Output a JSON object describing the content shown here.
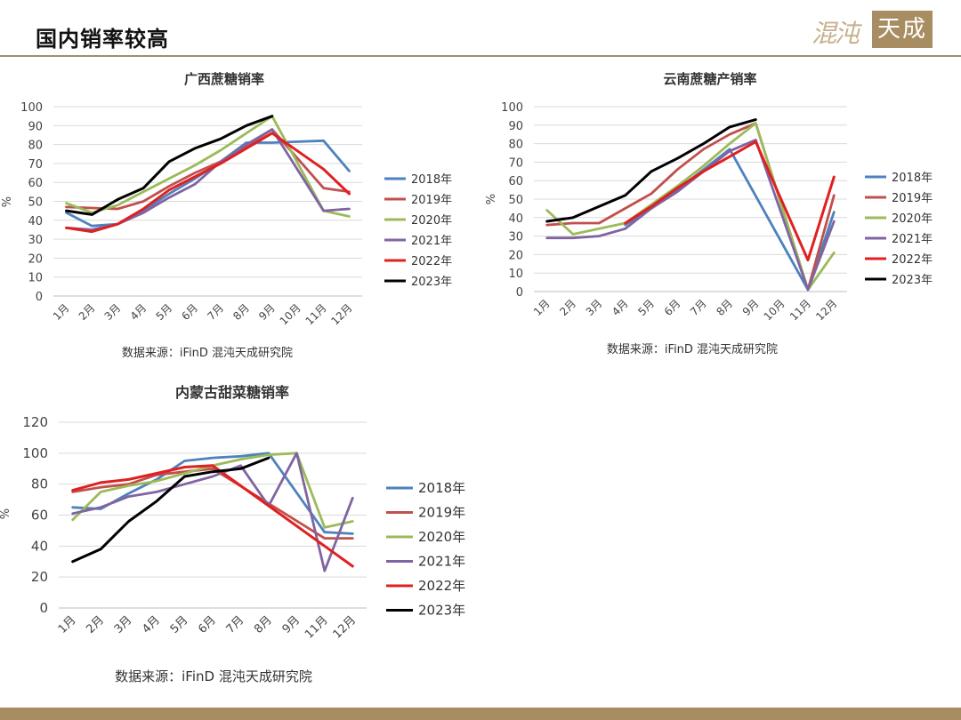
{
  "page": {
    "title": "国内销率较高",
    "logo_script": "混沌",
    "logo_box": "天成"
  },
  "chart_data": [
    {
      "type": "line",
      "title": "广西蔗糖销率",
      "ylabel": "%",
      "ylim": [
        0,
        100
      ],
      "yticks": [
        0,
        10,
        20,
        30,
        40,
        50,
        60,
        70,
        80,
        90,
        100
      ],
      "categories": [
        "1月",
        "2月",
        "3月",
        "4月",
        "5月",
        "6月",
        "7月",
        "8月",
        "9月",
        "10月",
        "11月",
        "12月"
      ],
      "source": "数据来源：iFinD 混沌天成研究院",
      "series": [
        {
          "name": "2018年",
          "color": "#4e81bd",
          "values": [
            44,
            37,
            38,
            45,
            54,
            62,
            71,
            81,
            81,
            81.5,
            82,
            66
          ]
        },
        {
          "name": "2019年",
          "color": "#c0504d",
          "values": [
            47,
            46.5,
            46,
            50,
            58,
            65,
            71,
            79,
            88,
            null,
            57,
            55
          ]
        },
        {
          "name": "2020年",
          "color": "#9bbb59",
          "values": [
            49,
            44,
            48,
            55,
            62,
            69,
            77,
            86,
            95,
            null,
            45,
            42
          ]
        },
        {
          "name": "2021年",
          "color": "#8064a2",
          "values": [
            36,
            35,
            38,
            44,
            52,
            59,
            71,
            80,
            88,
            null,
            45,
            46
          ]
        },
        {
          "name": "2022年",
          "color": "#e02020",
          "values": [
            36,
            34,
            38,
            46,
            56,
            63,
            70,
            78,
            86,
            null,
            67,
            54
          ]
        },
        {
          "name": "2023年",
          "color": "#000000",
          "values": [
            45,
            43,
            51,
            57,
            71,
            78,
            83,
            90,
            95,
            null,
            null,
            null
          ]
        }
      ]
    },
    {
      "type": "line",
      "title": "云南蔗糖产销率",
      "ylabel": "%",
      "ylim": [
        0,
        100
      ],
      "yticks": [
        0,
        10,
        20,
        30,
        40,
        50,
        60,
        70,
        80,
        90,
        100
      ],
      "categories": [
        "1月",
        "2月",
        "3月",
        "4月",
        "5月",
        "6月",
        "7月",
        "8月",
        "9月",
        "10月",
        "11月",
        "12月"
      ],
      "source": "数据来源：iFinD 混沌天成研究院",
      "series": [
        {
          "name": "2018年",
          "color": "#4e81bd",
          "values": [
            null,
            null,
            null,
            36,
            45,
            55,
            66,
            77,
            null,
            null,
            1,
            43
          ]
        },
        {
          "name": "2019年",
          "color": "#c0504d",
          "values": [
            36,
            37,
            37,
            45,
            53,
            66,
            77,
            85,
            91,
            null,
            1,
            52
          ]
        },
        {
          "name": "2020年",
          "color": "#9bbb59",
          "values": [
            44,
            31,
            34,
            37,
            47,
            57,
            68,
            80,
            91,
            null,
            1,
            21
          ]
        },
        {
          "name": "2021年",
          "color": "#8064a2",
          "values": [
            29,
            29,
            30,
            34,
            45,
            54,
            65,
            76,
            82,
            null,
            1,
            38
          ]
        },
        {
          "name": "2022年",
          "color": "#e02020",
          "values": [
            null,
            null,
            null,
            37,
            46,
            56,
            65,
            73,
            81,
            null,
            17,
            62
          ]
        },
        {
          "name": "2023年",
          "color": "#000000",
          "values": [
            38,
            40,
            46,
            52,
            65,
            72,
            80,
            89,
            93,
            null,
            null,
            null
          ]
        }
      ]
    },
    {
      "type": "line",
      "title": "内蒙古甜菜糖销率",
      "ylabel": "%",
      "ylim": [
        0,
        120
      ],
      "yticks": [
        0,
        20,
        40,
        60,
        80,
        100,
        120
      ],
      "categories": [
        "1月",
        "2月",
        "3月",
        "4月",
        "5月",
        "6月",
        "7月",
        "8月",
        "9月",
        "11月",
        "12月"
      ],
      "source": "数据来源：iFinD 混沌天成研究院",
      "series": [
        {
          "name": "2018年",
          "color": "#4e81bd",
          "values": [
            65,
            64,
            74,
            83,
            95,
            97,
            98,
            100,
            null,
            49,
            48
          ]
        },
        {
          "name": "2019年",
          "color": "#c0504d",
          "values": [
            75,
            78,
            80,
            86,
            88,
            90,
            null,
            null,
            null,
            45,
            45
          ]
        },
        {
          "name": "2020年",
          "color": "#9bbb59",
          "values": [
            57,
            75,
            79,
            82,
            87,
            92,
            96,
            99,
            100,
            52,
            56
          ]
        },
        {
          "name": "2021年",
          "color": "#8064a2",
          "values": [
            61,
            65,
            72,
            75,
            80,
            85,
            92,
            66,
            100,
            24,
            71
          ]
        },
        {
          "name": "2022年",
          "color": "#e02020",
          "values": [
            76,
            81,
            83,
            87,
            91,
            92,
            null,
            null,
            null,
            null,
            27
          ]
        },
        {
          "name": "2023年",
          "color": "#000000",
          "values": [
            30,
            38,
            56,
            69,
            85,
            88,
            90,
            97,
            null,
            null,
            null
          ]
        }
      ]
    }
  ]
}
